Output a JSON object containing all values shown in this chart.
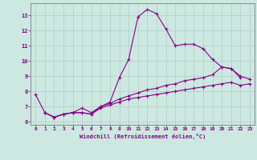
{
  "xlabel": "Windchill (Refroidissement éolien,°C)",
  "background_color": "#cce8e0",
  "line_color": "#880088",
  "grid_color": "#b0ccc4",
  "xlim": [
    -0.5,
    23.5
  ],
  "ylim": [
    5.8,
    13.8
  ],
  "xticks": [
    0,
    1,
    2,
    3,
    4,
    5,
    6,
    7,
    8,
    9,
    10,
    11,
    12,
    13,
    14,
    15,
    16,
    17,
    18,
    19,
    20,
    21,
    22,
    23
  ],
  "yticks": [
    6,
    7,
    8,
    9,
    10,
    11,
    12,
    13
  ],
  "curves": [
    {
      "x": [
        0,
        1,
        2,
        3,
        4,
        5,
        6,
        7,
        8,
        9,
        10,
        11,
        12,
        13,
        14,
        15,
        16,
        17,
        18,
        19,
        20,
        21,
        22
      ],
      "y": [
        7.8,
        6.6,
        6.3,
        6.5,
        6.6,
        6.6,
        6.5,
        7.0,
        7.3,
        8.9,
        10.1,
        12.9,
        13.4,
        13.1,
        12.1,
        11.0,
        11.1,
        11.1,
        10.8,
        10.1,
        9.6,
        9.5,
        8.9
      ]
    },
    {
      "x": [
        1,
        2,
        3,
        4,
        5,
        6,
        7,
        8,
        9,
        10,
        11,
        12,
        13,
        14,
        15,
        16,
        17,
        18,
        19,
        20,
        21,
        22,
        23
      ],
      "y": [
        6.6,
        6.3,
        6.5,
        6.6,
        6.9,
        6.6,
        7.0,
        7.2,
        7.5,
        7.7,
        7.9,
        8.1,
        8.2,
        8.4,
        8.5,
        8.7,
        8.8,
        8.9,
        9.1,
        9.6,
        9.5,
        9.0,
        8.8
      ]
    },
    {
      "x": [
        1,
        2,
        3,
        4,
        5,
        6,
        7,
        8,
        9,
        10,
        11,
        12,
        13,
        14,
        15,
        16,
        17,
        18,
        19,
        20,
        21,
        22,
        23
      ],
      "y": [
        6.6,
        6.3,
        6.5,
        6.6,
        6.6,
        6.5,
        6.9,
        7.1,
        7.3,
        7.5,
        7.6,
        7.7,
        7.8,
        7.9,
        8.0,
        8.1,
        8.2,
        8.3,
        8.4,
        8.5,
        8.6,
        8.4,
        8.5
      ]
    }
  ]
}
